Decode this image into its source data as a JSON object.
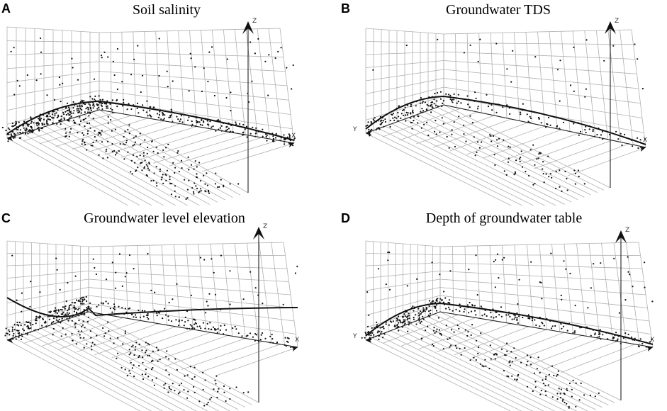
{
  "chart_data": [
    {
      "id": "A",
      "letter": "A",
      "title": "Soil salinity",
      "type": "scatter",
      "axes": {
        "x": "X",
        "z": "Z"
      },
      "seed": 11,
      "points": 700,
      "curve": "peak"
    },
    {
      "id": "B",
      "letter": "B",
      "title": "Groundwater TDS",
      "type": "scatter",
      "axes": {
        "x": "X",
        "y": "Y",
        "z": "Z"
      },
      "seed": 23,
      "points": 320,
      "curve": "peak"
    },
    {
      "id": "C",
      "letter": "C",
      "title": "Groundwater level elevation",
      "type": "scatter",
      "axes": {
        "x": "X",
        "z": "Z"
      },
      "seed": 37,
      "points": 520,
      "curve": "dip"
    },
    {
      "id": "D",
      "letter": "D",
      "title": "Depth of groundwater table",
      "type": "scatter",
      "axes": {
        "x": "X",
        "y": "Y",
        "z": "Z"
      },
      "seed": 51,
      "points": 480,
      "curve": "peak"
    }
  ]
}
